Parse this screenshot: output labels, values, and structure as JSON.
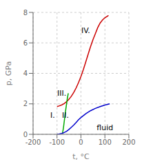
{
  "chart_data": {
    "type": "line",
    "title": "",
    "xlabel": "t, °C",
    "ylabel": "p, GPa",
    "xlim": [
      -200,
      200
    ],
    "ylim": [
      0,
      8
    ],
    "xticks": [
      -200,
      -100,
      0,
      100,
      200
    ],
    "yticks": [
      0,
      2,
      4,
      6,
      8
    ],
    "grid": true,
    "series": [
      {
        "color": "#cc0000",
        "x": [
          -100,
          -90,
          -80,
          -70,
          -60,
          -50,
          -40,
          -30,
          -20,
          -10,
          0,
          10,
          20,
          30,
          40,
          50,
          60,
          70,
          80,
          90,
          100,
          110,
          115
        ],
        "values": [
          1.82,
          1.87,
          1.93,
          2.02,
          2.14,
          2.3,
          2.5,
          2.75,
          3.05,
          3.4,
          3.8,
          4.25,
          4.75,
          5.25,
          5.75,
          6.2,
          6.6,
          7.0,
          7.3,
          7.5,
          7.65,
          7.75,
          7.8
        ]
      },
      {
        "color": "#00aa00",
        "x": [
          -77,
          -73,
          -69,
          -65,
          -61,
          -57,
          -53
        ],
        "values": [
          0.05,
          0.45,
          0.95,
          1.45,
          1.9,
          2.35,
          2.7
        ]
      },
      {
        "color": "#0000cc",
        "x": [
          -100,
          -90,
          -80,
          -70,
          -60,
          -50,
          -40,
          -30,
          -20,
          -10,
          0,
          20,
          40,
          60,
          80,
          100,
          120
        ],
        "values": [
          0.0,
          0.02,
          0.06,
          0.12,
          0.2,
          0.32,
          0.46,
          0.61,
          0.78,
          0.96,
          1.1,
          1.35,
          1.55,
          1.7,
          1.82,
          1.92,
          2.0
        ]
      }
    ],
    "annotations": [
      {
        "text": "I.",
        "x": -118,
        "y": 1.25
      },
      {
        "text": "II.",
        "x": -65,
        "y": 1.25
      },
      {
        "text": "III.",
        "x": -80,
        "y": 2.7
      },
      {
        "text": "IV.",
        "x": 20,
        "y": 6.8
      },
      {
        "text": "fluid",
        "x": 100,
        "y": 0.45
      }
    ]
  }
}
